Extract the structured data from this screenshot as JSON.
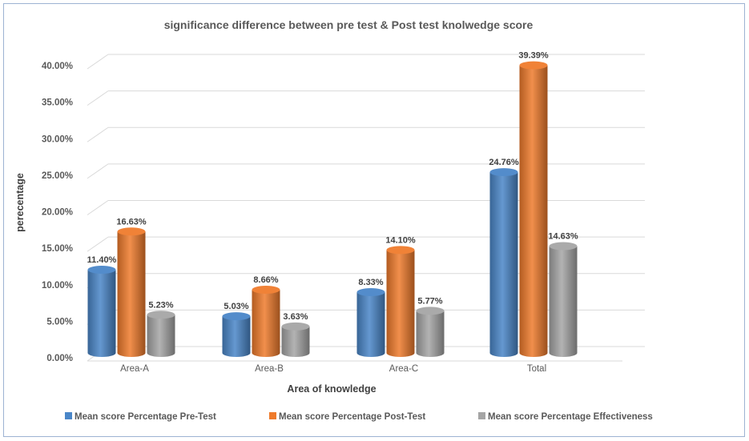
{
  "chart_data": {
    "type": "bar",
    "title": "significance difference between pre test & Post test  knolwedge score",
    "xlabel": "Area of knowledge",
    "ylabel": "perecentage",
    "categories": [
      "Area-A",
      "Area-B",
      "Area-C",
      "Total"
    ],
    "series": [
      {
        "name": "Mean score Percentage  Pre-Test",
        "values": [
          11.4,
          5.03,
          8.33,
          24.76
        ],
        "labels": [
          "11.40%",
          "5.03%",
          "8.33%",
          "24.76%"
        ],
        "color": "#4a86c8"
      },
      {
        "name": "Mean score Percentage  Post-Test",
        "values": [
          16.63,
          8.66,
          14.1,
          39.39
        ],
        "labels": [
          "16.63%",
          "8.66%",
          "14.10%",
          "39.39%"
        ],
        "color": "#ef7b2c"
      },
      {
        "name": "Mean score Percentage  Effectiveness",
        "values": [
          5.23,
          3.63,
          5.77,
          14.63
        ],
        "labels": [
          "5.23%",
          "3.63%",
          "5.77%",
          "14.63%"
        ],
        "color": "#a5a5a5"
      }
    ],
    "ylim": [
      0,
      40
    ],
    "yticks": [
      "0.00%",
      "5.00%",
      "10.00%",
      "15.00%",
      "20.00%",
      "25.00%",
      "30.00%",
      "35.00%",
      "40.00%"
    ],
    "grid": true,
    "legend_position": "bottom"
  }
}
